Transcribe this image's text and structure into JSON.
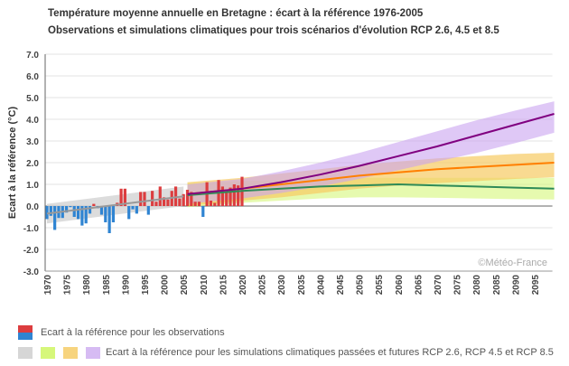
{
  "chart_data": {
    "type": "bar",
    "title": "Température moyenne annuelle en Bretagne : écart à la référence 1976-2005",
    "subtitle": "Observations et simulations climatiques pour trois scénarios d'évolution RCP 2.6, 4.5 et 8.5",
    "ylabel": "Ecart à la référence (°C)",
    "xlabel": "",
    "ylim": [
      -3.0,
      7.0
    ],
    "xlim": [
      1970,
      2100
    ],
    "yticks": [
      "7.0",
      "6.0",
      "5.0",
      "4.0",
      "3.0",
      "2.0",
      "1.0",
      "0.0",
      "-1.0",
      "-2.0",
      "-3.0"
    ],
    "xticks": [
      "1970",
      "1975",
      "1980",
      "1985",
      "1990",
      "1995",
      "2000",
      "2005",
      "2010",
      "2015",
      "2020",
      "2025",
      "2030",
      "2035",
      "2040",
      "2045",
      "2050",
      "2055",
      "2060",
      "2065",
      "2070",
      "2075",
      "2080",
      "2085",
      "2090",
      "2095"
    ],
    "grid": true,
    "watermark": "©Météo-France",
    "colors": {
      "positive": "#dc3d3f",
      "negative": "#2f84d2",
      "hist_band": "#d6d6d6",
      "hist_line": "#999999",
      "rcp26_band": "#d6f77a",
      "rcp26_line": "#2e8b57",
      "rcp45_band": "#f7ca62",
      "rcp45_line": "#ff7f00",
      "rcp85_band": "#c9a3f0",
      "rcp85_line": "#800080"
    },
    "observations": {
      "years": [
        1970,
        1971,
        1972,
        1973,
        1974,
        1975,
        1976,
        1977,
        1978,
        1979,
        1980,
        1981,
        1982,
        1983,
        1984,
        1985,
        1986,
        1987,
        1988,
        1989,
        1990,
        1991,
        1992,
        1993,
        1994,
        1995,
        1996,
        1997,
        1998,
        1999,
        2000,
        2001,
        2002,
        2003,
        2004,
        2005,
        2006,
        2007,
        2008,
        2009,
        2010,
        2011,
        2012,
        2013,
        2014,
        2015,
        2016,
        2017,
        2018,
        2019,
        2020
      ],
      "values": [
        -0.6,
        -0.45,
        -1.1,
        -0.55,
        -0.55,
        -0.3,
        -0.05,
        -0.5,
        -0.6,
        -0.9,
        -0.8,
        -0.35,
        0.1,
        -0.1,
        -0.4,
        -0.75,
        -1.25,
        -0.75,
        0.15,
        0.8,
        0.8,
        -0.6,
        -0.15,
        -0.35,
        0.65,
        0.65,
        -0.4,
        0.7,
        0.2,
        0.9,
        0.4,
        0.3,
        0.7,
        0.9,
        0.35,
        0.55,
        0.75,
        0.65,
        0.2,
        0.2,
        -0.5,
        1.1,
        0.25,
        0.15,
        1.2,
        0.9,
        0.65,
        0.85,
        1.0,
        0.95,
        1.35
      ]
    },
    "historical_simulation": {
      "years": [
        1970,
        2005
      ],
      "median": [
        -0.35,
        0.45
      ],
      "low": [
        -0.8,
        0.0
      ],
      "high": [
        0.1,
        0.9
      ]
    },
    "series": [
      {
        "name": "RCP 2.6",
        "years": [
          2006,
          2020,
          2030,
          2040,
          2050,
          2060,
          2070,
          2080,
          2090,
          2100
        ],
        "median": [
          0.5,
          0.7,
          0.8,
          0.9,
          0.95,
          1.0,
          0.95,
          0.9,
          0.85,
          0.8
        ],
        "low": [
          -0.05,
          0.15,
          0.25,
          0.35,
          0.4,
          0.4,
          0.38,
          0.35,
          0.32,
          0.3
        ],
        "high": [
          1.05,
          1.15,
          1.2,
          1.25,
          1.3,
          1.3,
          1.3,
          1.3,
          1.3,
          1.3
        ]
      },
      {
        "name": "RCP 4.5",
        "years": [
          2006,
          2020,
          2030,
          2040,
          2050,
          2060,
          2070,
          2080,
          2090,
          2100
        ],
        "median": [
          0.55,
          0.8,
          1.0,
          1.2,
          1.4,
          1.55,
          1.7,
          1.8,
          1.9,
          2.0
        ],
        "low": [
          0.0,
          0.25,
          0.4,
          0.6,
          0.8,
          0.95,
          1.05,
          1.15,
          1.25,
          1.33
        ],
        "high": [
          1.1,
          1.3,
          1.5,
          1.7,
          1.9,
          2.05,
          2.2,
          2.3,
          2.4,
          2.46
        ]
      },
      {
        "name": "RCP 8.5",
        "years": [
          2006,
          2020,
          2030,
          2040,
          2050,
          2060,
          2070,
          2080,
          2090,
          2100
        ],
        "median": [
          0.55,
          0.8,
          1.1,
          1.45,
          1.85,
          2.3,
          2.75,
          3.25,
          3.75,
          4.25
        ],
        "low": [
          0.1,
          0.35,
          0.6,
          0.9,
          1.25,
          1.65,
          2.05,
          2.45,
          2.9,
          3.38
        ],
        "high": [
          1.0,
          1.25,
          1.6,
          2.0,
          2.45,
          2.95,
          3.45,
          3.95,
          4.4,
          4.83
        ]
      }
    ]
  },
  "legend": {
    "observations_label": "Ecart à la référence pour les observations",
    "simulations_label": "Ecart à la référence pour les simulations climatiques passées et futures RCP 2.6, RCP 4.5 et RCP 8.5"
  }
}
